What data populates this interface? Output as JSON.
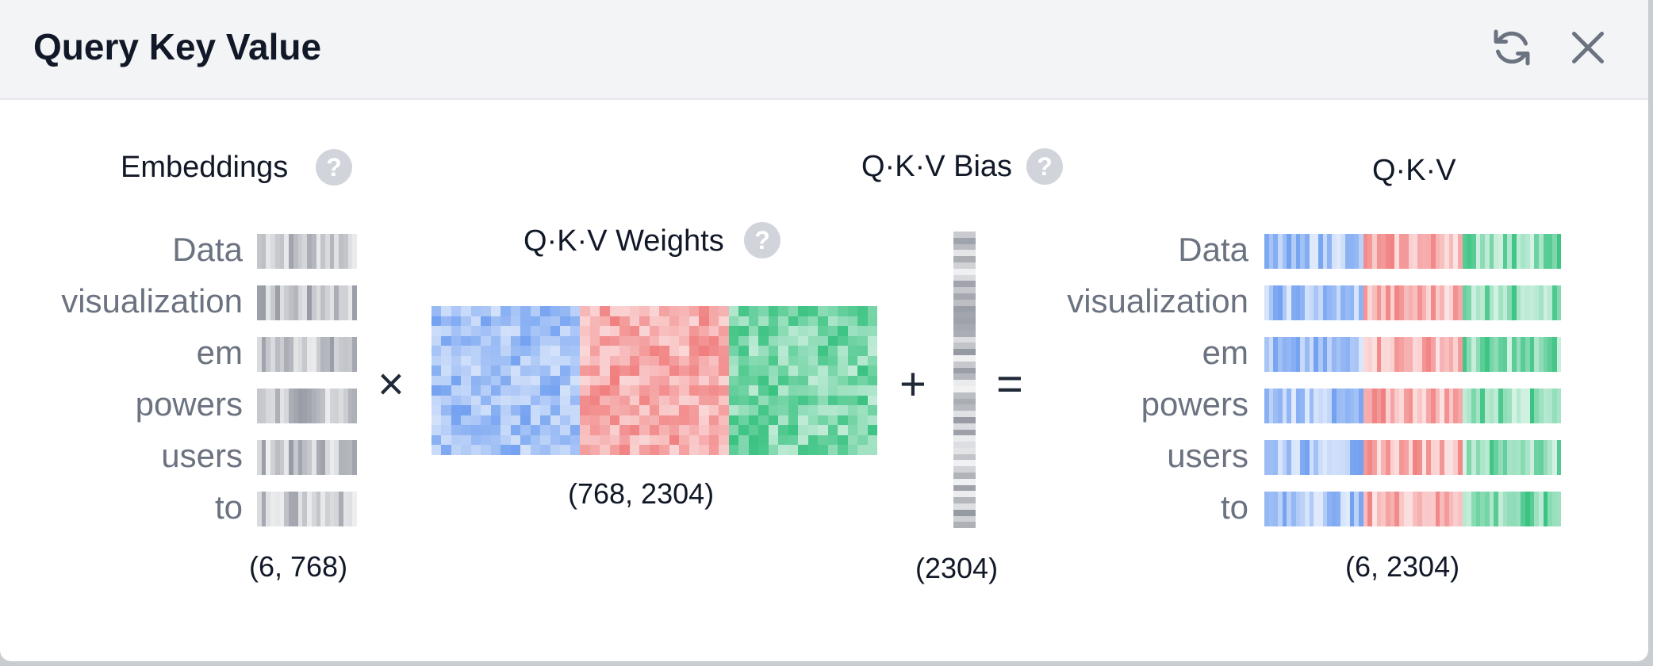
{
  "header": {
    "title": "Query Key Value",
    "refresh_icon": "refresh-icon",
    "close_icon": "close-icon"
  },
  "help_glyph": "?",
  "tokens": [
    "Data",
    "visualization",
    "em",
    "powers",
    "users",
    "to"
  ],
  "embeddings": {
    "label": "Embeddings",
    "shape": "(6, 768)"
  },
  "weights": {
    "label": "Q·K·V Weights",
    "shape": "(768, 2304)"
  },
  "bias": {
    "label": "Q·K·V Bias",
    "shape": "(2304)"
  },
  "output": {
    "label": "Q·K·V",
    "shape": "(6, 2304)"
  },
  "operators": {
    "multiply": "×",
    "add": "+",
    "equals": "="
  },
  "colors": {
    "query": "#6b9cf0",
    "key": "#f07878",
    "value": "#2fbf7a",
    "neutral": "#8b8f99"
  }
}
